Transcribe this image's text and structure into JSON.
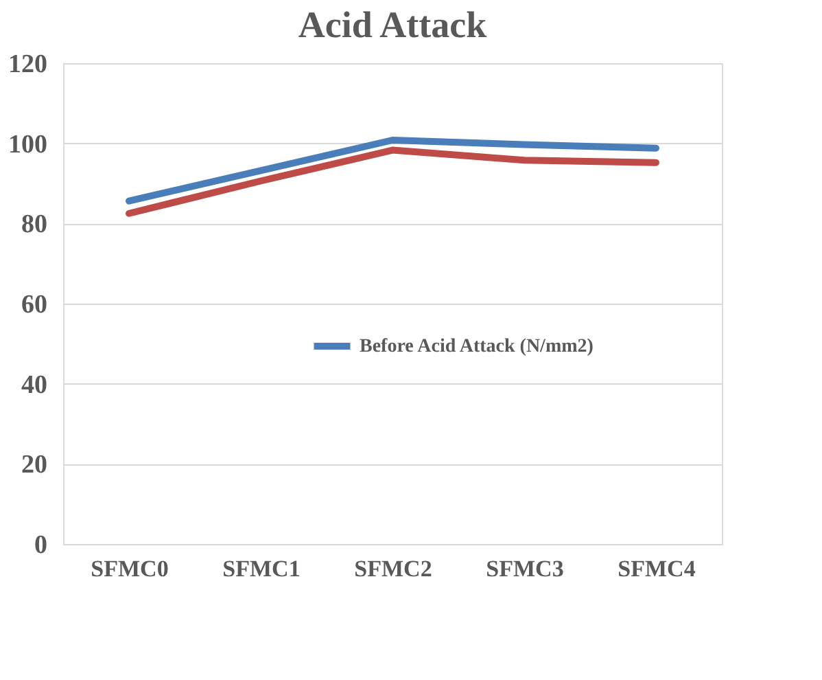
{
  "chart_data": {
    "type": "line",
    "title": "Acid Attack",
    "categories": [
      "SFMC0",
      "SFMC1",
      "SFMC2",
      "SFMC3",
      "SFMC4"
    ],
    "series": [
      {
        "name": "Before Acid Attack (N/mm2)",
        "color": "#4a7ebb",
        "values": [
          85.6,
          93.2,
          100.8,
          99.7,
          98.8
        ]
      },
      {
        "color": "#be4b48",
        "values": [
          82.5,
          90.6,
          98.3,
          95.8,
          95.2
        ]
      }
    ],
    "ylim": [
      0,
      120
    ],
    "yticks": [
      0,
      20,
      40,
      60,
      80,
      100,
      120
    ],
    "grid": "y",
    "legend": "center",
    "marker": "none",
    "line_style": "solid"
  }
}
